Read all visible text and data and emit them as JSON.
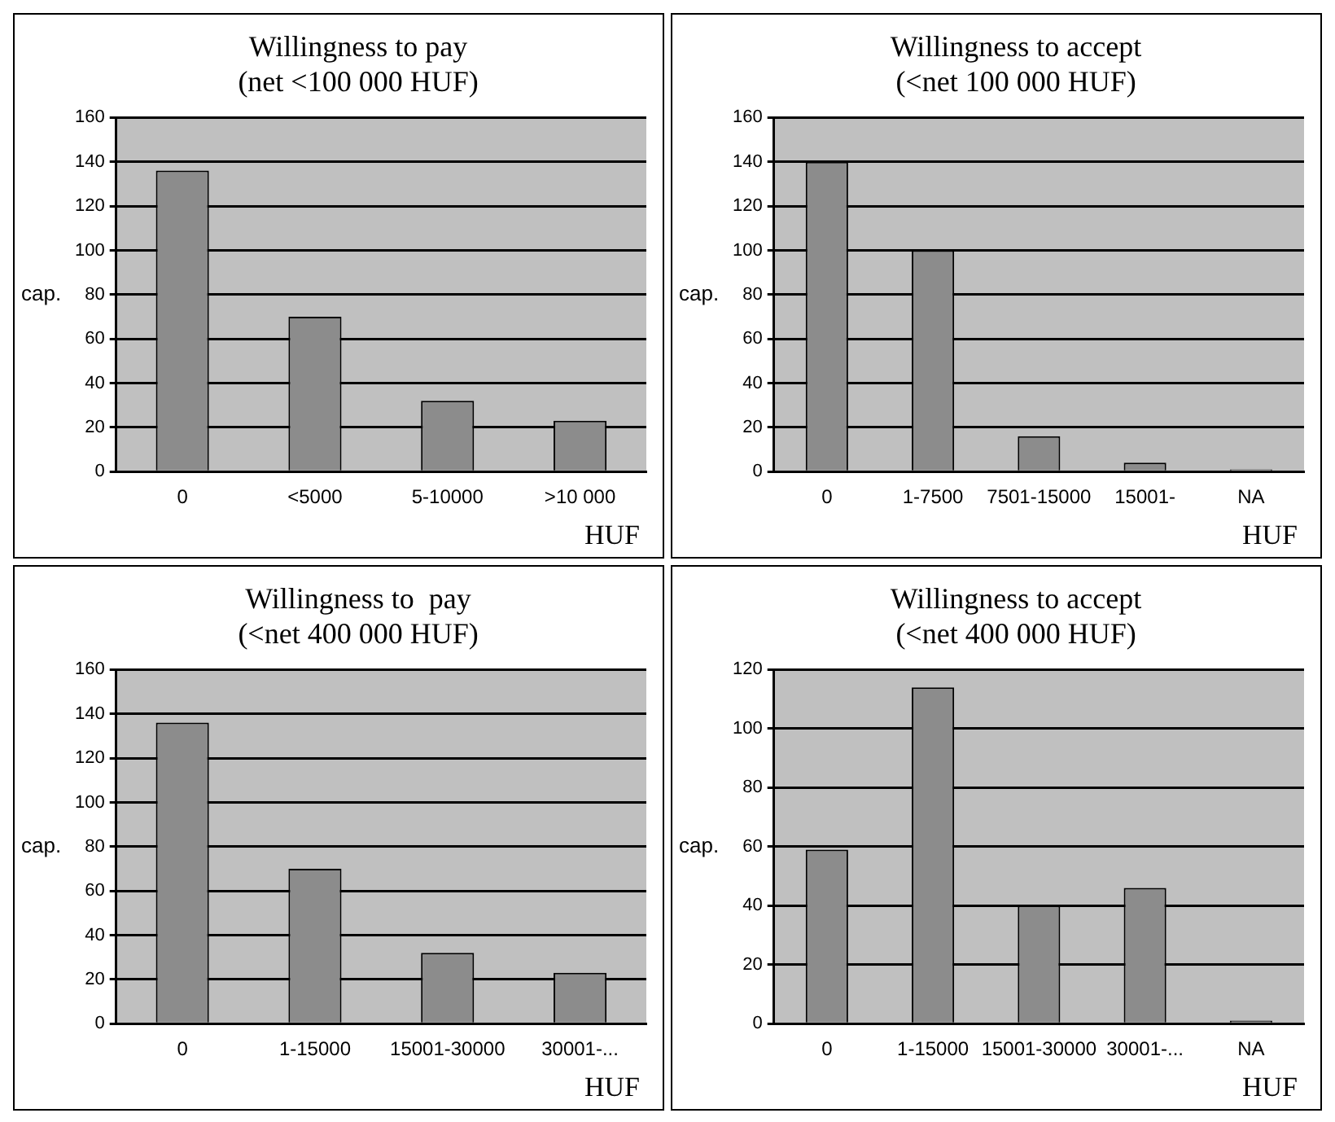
{
  "chart_data": [
    {
      "type": "bar",
      "title": [
        "Willingness to pay",
        "(net <100 000 HUF)"
      ],
      "ylabel": "cap.",
      "xlabel": "HUF",
      "categories": [
        "0",
        "<5000",
        "5-10000",
        ">10 000"
      ],
      "values": [
        136,
        70,
        32,
        23
      ],
      "color": "#8c8c8c",
      "ylim": [
        0,
        160
      ],
      "yticks": [
        0,
        20,
        40,
        60,
        80,
        100,
        120,
        140,
        160
      ],
      "grid": "y",
      "legend": false
    },
    {
      "type": "bar",
      "title": [
        "Willingness to accept",
        "(<net 100 000 HUF)"
      ],
      "ylabel": "cap.",
      "xlabel": "HUF",
      "categories": [
        "0",
        "1-7500",
        "7501-15000",
        "15001-",
        "NA"
      ],
      "values": [
        140,
        100,
        16,
        4,
        1
      ],
      "color": "#8c8c8c",
      "ylim": [
        0,
        160
      ],
      "yticks": [
        0,
        20,
        40,
        60,
        80,
        100,
        120,
        140,
        160
      ],
      "grid": "y",
      "legend": false
    },
    {
      "type": "bar",
      "title": [
        "Willingness to  pay",
        "(<net 400 000 HUF)"
      ],
      "ylabel": "cap.",
      "xlabel": "HUF",
      "categories": [
        "0",
        "1-15000",
        "15001-30000",
        "30001-..."
      ],
      "values": [
        136,
        70,
        32,
        23
      ],
      "color": "#8c8c8c",
      "ylim": [
        0,
        160
      ],
      "yticks": [
        0,
        20,
        40,
        60,
        80,
        100,
        120,
        140,
        160
      ],
      "grid": "y",
      "legend": false
    },
    {
      "type": "bar",
      "title": [
        "Willingness to accept",
        "(<net 400 000 HUF)"
      ],
      "ylabel": "cap.",
      "xlabel": "HUF",
      "categories": [
        "0",
        "1-15000",
        "15001-30000",
        "30001-...",
        "NA"
      ],
      "values": [
        59,
        114,
        40,
        46,
        1
      ],
      "color": "#8c8c8c",
      "ylim": [
        0,
        120
      ],
      "yticks": [
        0,
        20,
        40,
        60,
        80,
        100,
        120
      ],
      "grid": "y",
      "legend": false
    }
  ]
}
